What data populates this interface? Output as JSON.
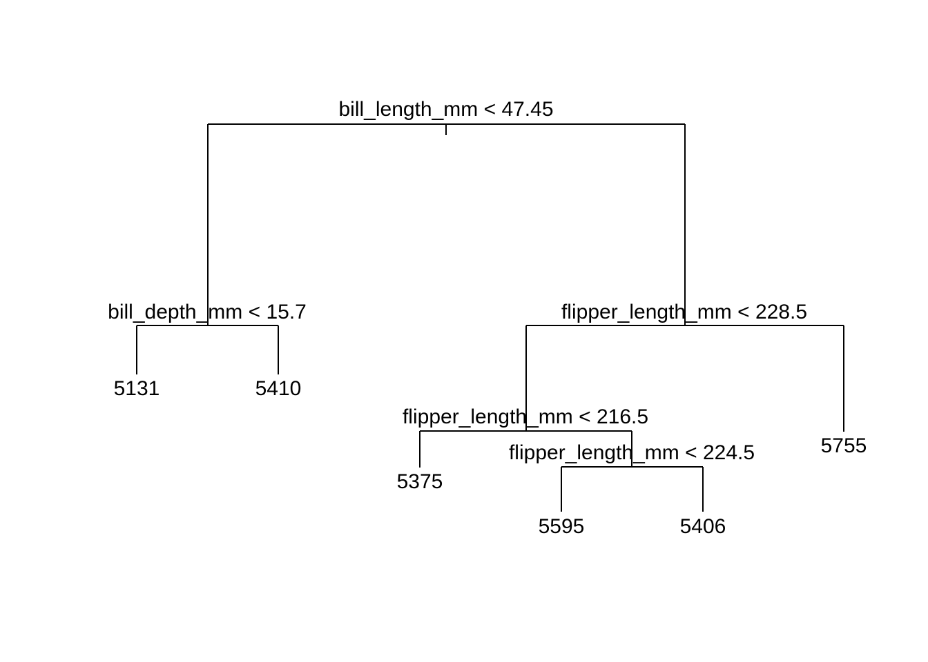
{
  "tree": {
    "splits": {
      "root": "bill_length_mm < 47.45",
      "left": "bill_depth_mm < 15.7",
      "right": "flipper_length_mm < 228.5",
      "right_left": "flipper_length_mm < 216.5",
      "right_left_right": "flipper_length_mm < 224.5"
    },
    "leaves": {
      "left_left": "5131",
      "left_right": "5410",
      "right_left_left": "5375",
      "right_left_right_left": "5595",
      "right_left_right_right": "5406",
      "right_right": "5755"
    }
  }
}
